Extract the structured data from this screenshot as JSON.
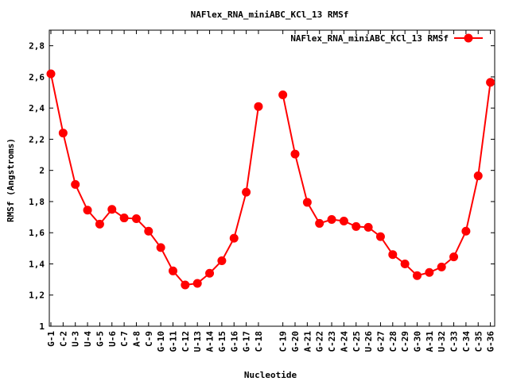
{
  "chart_data": {
    "type": "line",
    "title": "NAFlex_RNA_miniABC_KCl_13 RMSf",
    "xlabel": "Nucleotide",
    "ylabel": "RMSf (Angstroms)",
    "ylim": [
      1,
      2.9
    ],
    "yticks": [
      "1",
      "1,2",
      "1,4",
      "1,6",
      "1,8",
      "2",
      "2,2",
      "2,4",
      "2,6",
      "2,8"
    ],
    "ytick_values": [
      1,
      1.2,
      1.4,
      1.6,
      1.8,
      2,
      2.2,
      2.4,
      2.6,
      2.8
    ],
    "grid": false,
    "legend_position": "top-right",
    "categories": [
      "G-1",
      "C-2",
      "U-3",
      "U-4",
      "G-5",
      "U-6",
      "C-7",
      "A-8",
      "C-9",
      "G-10",
      "G-11",
      "C-12",
      "U-13",
      "A-14",
      "G-15",
      "G-16",
      "G-17",
      "C-18",
      "C-19",
      "G-20",
      "A-21",
      "G-22",
      "C-23",
      "A-24",
      "C-25",
      "U-26",
      "G-27",
      "C-28",
      "C-29",
      "G-30",
      "A-31",
      "U-32",
      "C-33",
      "C-34",
      "C-35",
      "G-36"
    ],
    "series": [
      {
        "name": "NAFlex_RNA_miniABC_KCl_13 RMSf",
        "color": "#ff0000",
        "values": [
          [
            2.62,
            2.24,
            1.91,
            1.745,
            1.655,
            1.75,
            1.695,
            1.69,
            1.61,
            1.505,
            1.355,
            1.265,
            1.275,
            1.34,
            1.42,
            1.565,
            1.86,
            2.41
          ],
          [
            2.485,
            2.105,
            1.795,
            1.66,
            1.685,
            1.675,
            1.64,
            1.635,
            1.575,
            1.46,
            1.4,
            1.325,
            1.345,
            1.38,
            1.445,
            1.61,
            1.965,
            2.565
          ]
        ]
      }
    ]
  }
}
